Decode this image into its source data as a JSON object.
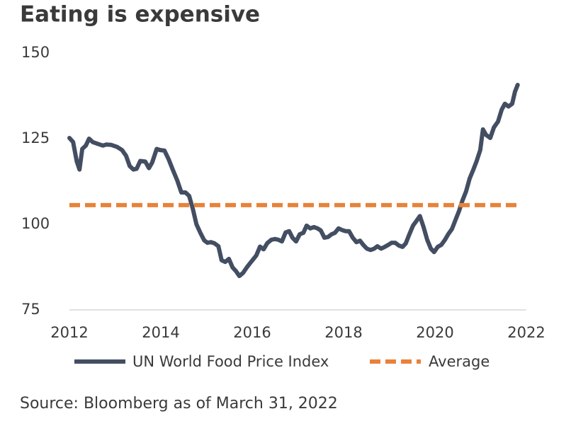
{
  "chart_data": {
    "type": "line",
    "title": "Eating is expensive",
    "source": "Source: Bloomberg as of March 31, 2022",
    "xlim": [
      2012,
      2022
    ],
    "xticks": [
      2012,
      2014,
      2016,
      2018,
      2020,
      2022
    ],
    "ylim": [
      75,
      150
    ],
    "yticks": [
      75,
      100,
      125,
      150
    ],
    "legend": "bottom",
    "series": [
      {
        "name": "UN World Food Price Index",
        "color": "#434e62",
        "dashed": false,
        "x": [
          2012.0,
          2012.08,
          2012.16,
          2012.22,
          2012.28,
          2012.36,
          2012.43,
          2012.51,
          2012.62,
          2012.73,
          2012.81,
          2012.91,
          2013.04,
          2013.15,
          2013.24,
          2013.32,
          2013.4,
          2013.47,
          2013.55,
          2013.66,
          2013.74,
          2013.81,
          2013.91,
          2013.98,
          2014.08,
          2014.17,
          2014.26,
          2014.36,
          2014.45,
          2014.54,
          2014.62,
          2014.7,
          2014.78,
          2014.87,
          2014.95,
          2015.02,
          2015.1,
          2015.18,
          2015.26,
          2015.33,
          2015.41,
          2015.49,
          2015.57,
          2015.64,
          2015.72,
          2015.8,
          2015.88,
          2015.95,
          2016.03,
          2016.09,
          2016.17,
          2016.25,
          2016.33,
          2016.42,
          2016.5,
          2016.57,
          2016.65,
          2016.73,
          2016.81,
          2016.88,
          2016.96,
          2017.04,
          2017.12,
          2017.19,
          2017.27,
          2017.35,
          2017.43,
          2017.5,
          2017.58,
          2017.66,
          2017.74,
          2017.81,
          2017.89,
          2017.97,
          2018.05,
          2018.12,
          2018.2,
          2018.28,
          2018.36,
          2018.43,
          2018.51,
          2018.59,
          2018.67,
          2018.74,
          2018.82,
          2018.9,
          2018.98,
          2019.05,
          2019.13,
          2019.21,
          2019.29,
          2019.36,
          2019.44,
          2019.52,
          2019.6,
          2019.67,
          2019.75,
          2019.83,
          2019.91,
          2019.98,
          2020.06,
          2020.14,
          2020.22,
          2020.29,
          2020.37,
          2020.45,
          2020.53,
          2020.6,
          2020.68,
          2020.76,
          2020.84,
          2020.91,
          2020.99,
          2021.05,
          2021.12,
          2021.21,
          2021.29,
          2021.38,
          2021.46,
          2021.53,
          2021.61,
          2021.69,
          2021.75,
          2021.81
        ],
        "values": [
          125.2,
          124,
          118.4,
          116,
          122,
          123,
          125,
          124,
          123.5,
          123,
          123.3,
          123.2,
          122.6,
          121.7,
          120,
          117,
          116,
          116.2,
          118.5,
          118.3,
          116.4,
          118,
          122,
          121.7,
          121.5,
          119,
          116,
          112.8,
          109.3,
          109.3,
          108.3,
          104.5,
          100,
          97.4,
          95.3,
          94.6,
          94.8,
          94.4,
          93.6,
          89.5,
          89,
          89.9,
          87.4,
          86.4,
          84.9,
          85.8,
          87.4,
          88.6,
          89.9,
          90.9,
          93.5,
          92.7,
          94.5,
          95.5,
          95.7,
          95.5,
          95,
          97.6,
          98,
          96.1,
          95,
          97.1,
          97.5,
          99.6,
          98.8,
          99.2,
          98.8,
          98.2,
          96.1,
          96.3,
          97.1,
          97.5,
          98.8,
          98.3,
          98,
          98,
          96.1,
          94.8,
          95.2,
          94,
          92.9,
          92.5,
          92.9,
          93.6,
          92.9,
          93.4,
          94,
          94.6,
          94.6,
          93.8,
          93.4,
          94.4,
          97.1,
          99.6,
          101.1,
          102.4,
          99.2,
          95.5,
          92.9,
          91.9,
          93.4,
          94,
          95.5,
          97.1,
          98.6,
          101.3,
          104,
          106.9,
          109.6,
          113.4,
          116,
          118.4,
          121.7,
          127.7,
          126.1,
          125.2,
          128.3,
          130,
          133.5,
          135.2,
          134.4,
          135.2,
          138.7,
          140.7
        ]
      },
      {
        "name": "Average",
        "color": "#e8823a",
        "dashed": true,
        "x": [
          2012.0,
          2021.88
        ],
        "values": [
          105.6,
          105.6
        ]
      }
    ]
  }
}
